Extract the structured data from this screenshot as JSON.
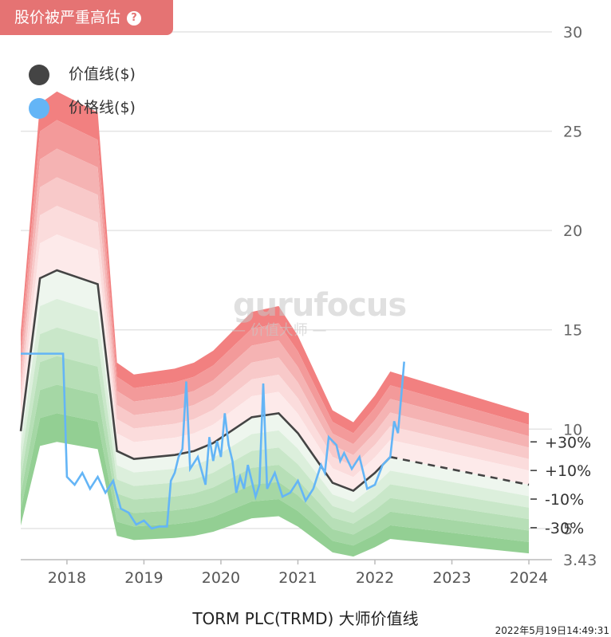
{
  "badge": {
    "label": "股价被严重高估",
    "help_icon": "question-circle-icon"
  },
  "watermark": {
    "brand": "gurufocus",
    "tagline": "— 价值大师 —"
  },
  "legend": [
    {
      "label": "价值线($)",
      "color": "#444444"
    },
    {
      "label": "价格线($)",
      "color": "#64b5f6"
    }
  ],
  "chart_data": {
    "type": "line",
    "title": "TORM PLC(TRMD) 大师价值线",
    "timestamp": "2022年5月19日14:49:31",
    "x_ticks": [
      2018,
      2019,
      2020,
      2021,
      2022,
      2023,
      2024
    ],
    "y_ticks": [
      30,
      25,
      20,
      15,
      10,
      5
    ],
    "y_min_label": "3.43",
    "ylim": [
      3.43,
      30
    ],
    "xlim": [
      2017.4,
      2024.3
    ],
    "band_labels": [
      "+30%",
      "+10%",
      "-10%",
      "-30%"
    ],
    "value_line": {
      "x": [
        2017.4,
        2017.65,
        2017.87,
        2018.4,
        2018.65,
        2018.87,
        2019.4,
        2019.65,
        2019.9,
        2020.4,
        2020.75,
        2021.0,
        2021.45,
        2021.72,
        2022.0,
        2022.2
      ],
      "y": [
        9.9,
        17.6,
        18.0,
        17.3,
        8.9,
        8.5,
        8.7,
        8.9,
        9.3,
        10.6,
        10.8,
        9.8,
        7.3,
        6.9,
        7.8,
        8.6
      ]
    },
    "value_projection": {
      "x": [
        2022.2,
        2024.0
      ],
      "y": [
        8.6,
        7.2
      ]
    },
    "price_line": {
      "x": [
        2017.4,
        2017.6,
        2017.8,
        2017.95,
        2018.0,
        2018.1,
        2018.2,
        2018.3,
        2018.4,
        2018.5,
        2018.6,
        2018.7,
        2018.8,
        2018.9,
        2019.0,
        2019.1,
        2019.2,
        2019.3,
        2019.35,
        2019.4,
        2019.45,
        2019.5,
        2019.55,
        2019.6,
        2019.7,
        2019.8,
        2019.85,
        2019.9,
        2019.95,
        2020.0,
        2020.05,
        2020.1,
        2020.15,
        2020.2,
        2020.25,
        2020.3,
        2020.35,
        2020.4,
        2020.45,
        2020.5,
        2020.55,
        2020.6,
        2020.7,
        2020.8,
        2020.9,
        2021.0,
        2021.1,
        2021.2,
        2021.3,
        2021.35,
        2021.4,
        2021.5,
        2021.55,
        2021.6,
        2021.7,
        2021.8,
        2021.9,
        2022.0,
        2022.1,
        2022.2,
        2022.25,
        2022.3,
        2022.35,
        2022.38
      ],
      "y": [
        13.8,
        13.8,
        13.8,
        13.8,
        7.6,
        7.2,
        7.8,
        7.0,
        7.6,
        6.8,
        7.4,
        6.0,
        5.8,
        5.2,
        5.4,
        5.0,
        5.1,
        5.1,
        7.4,
        7.8,
        8.6,
        9.0,
        12.4,
        8.0,
        8.6,
        7.2,
        9.6,
        8.4,
        9.4,
        8.6,
        10.8,
        9.2,
        8.4,
        6.8,
        7.6,
        7.0,
        8.2,
        7.4,
        6.6,
        7.2,
        12.3,
        7.0,
        7.8,
        6.6,
        6.8,
        7.4,
        6.4,
        7.0,
        8.2,
        7.8,
        9.6,
        9.2,
        8.4,
        8.8,
        8.0,
        8.6,
        7.0,
        7.2,
        8.2,
        8.6,
        10.4,
        9.8,
        12.0,
        13.4
      ]
    }
  }
}
